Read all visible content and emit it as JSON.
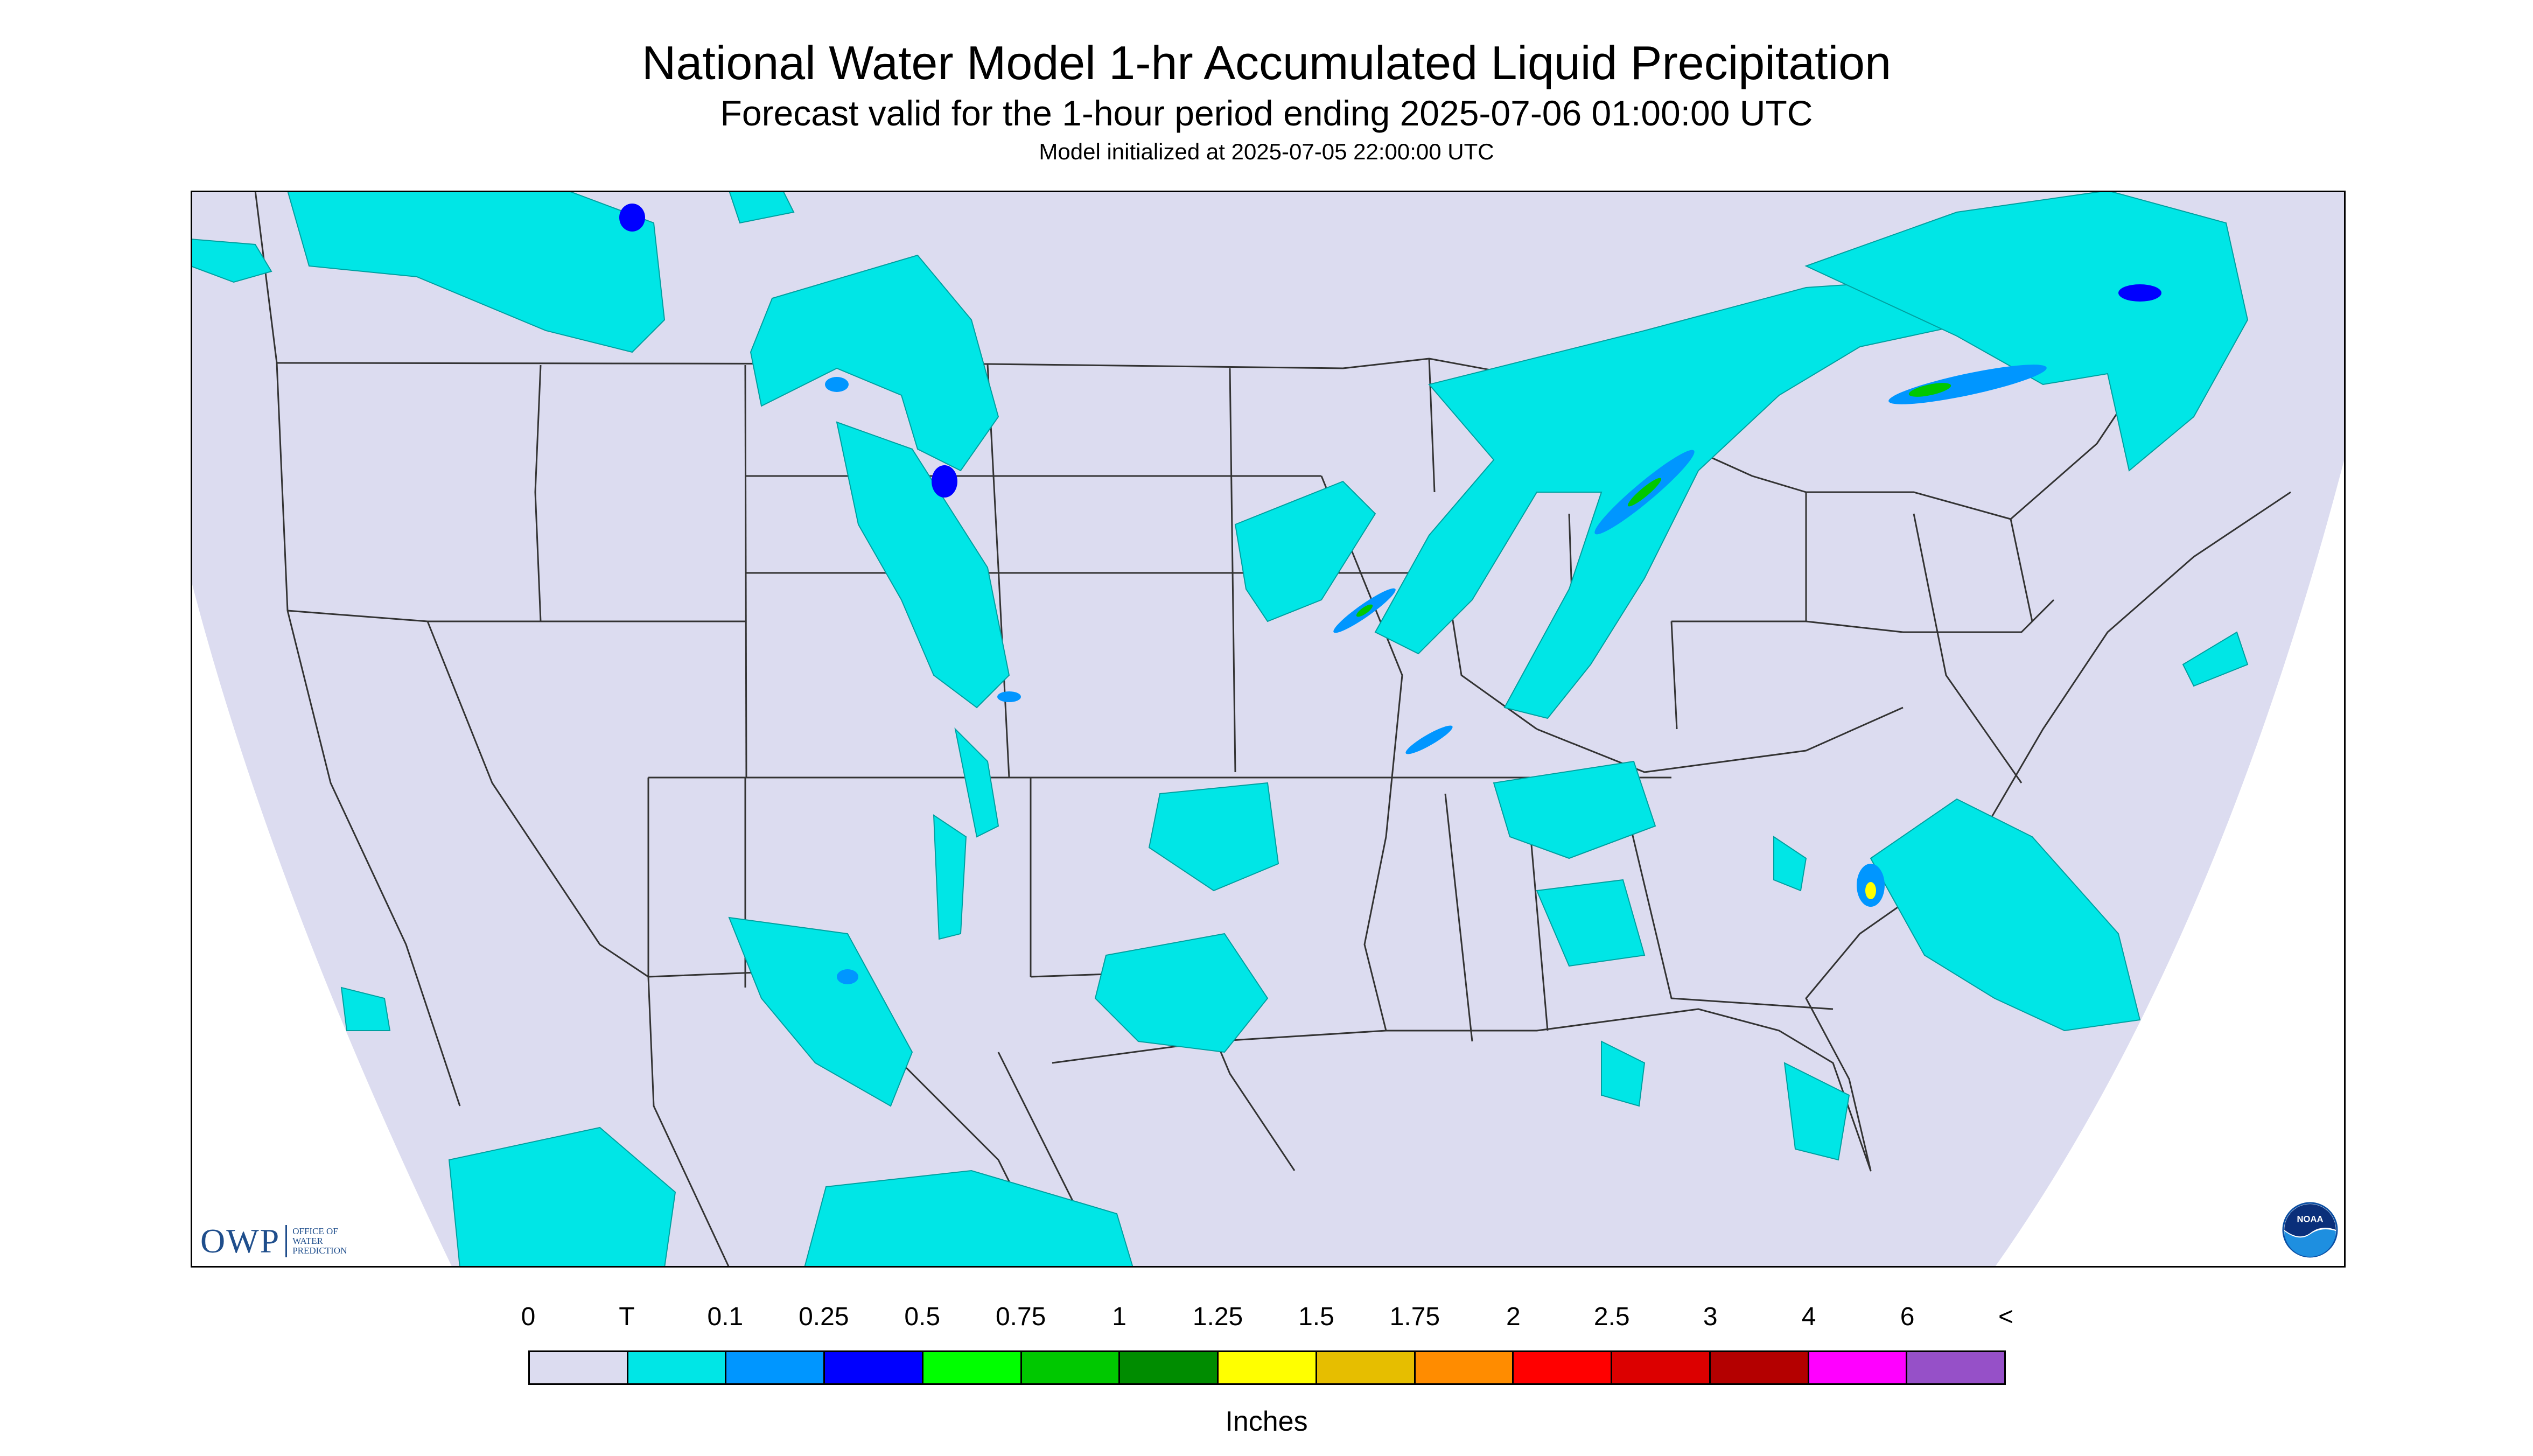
{
  "title": "National Water Model 1-hr Accumulated Liquid Precipitation",
  "subtitle": "Forecast valid for the 1-hour period ending 2025-07-06 01:00:00 UTC",
  "initialized": "Model initialized at 2025-07-05 22:00:00 UTC",
  "legend": {
    "labels": [
      "0",
      "T",
      "0.1",
      "0.25",
      "0.5",
      "0.75",
      "1",
      "1.25",
      "1.5",
      "1.75",
      "2",
      "2.5",
      "3",
      "4",
      "6",
      "<"
    ],
    "colors": [
      "#dcdcf0",
      "#00e6e6",
      "#0096ff",
      "#0000ff",
      "#00ff00",
      "#00c800",
      "#008c00",
      "#ffff00",
      "#e6be00",
      "#ff8c00",
      "#ff0000",
      "#dc0000",
      "#b40000",
      "#ff00ff",
      "#9650c8"
    ],
    "units": "Inches"
  },
  "logos": {
    "owp_mark": "OWP",
    "owp_text": [
      "OFFICE OF",
      "WATER",
      "PREDICTION"
    ],
    "noaa": "NOAA"
  },
  "map": {
    "domain_color": "#dcdcf0",
    "background_color": "#ffffff",
    "icons": [
      "state-boundaries",
      "precipitation-field"
    ]
  }
}
